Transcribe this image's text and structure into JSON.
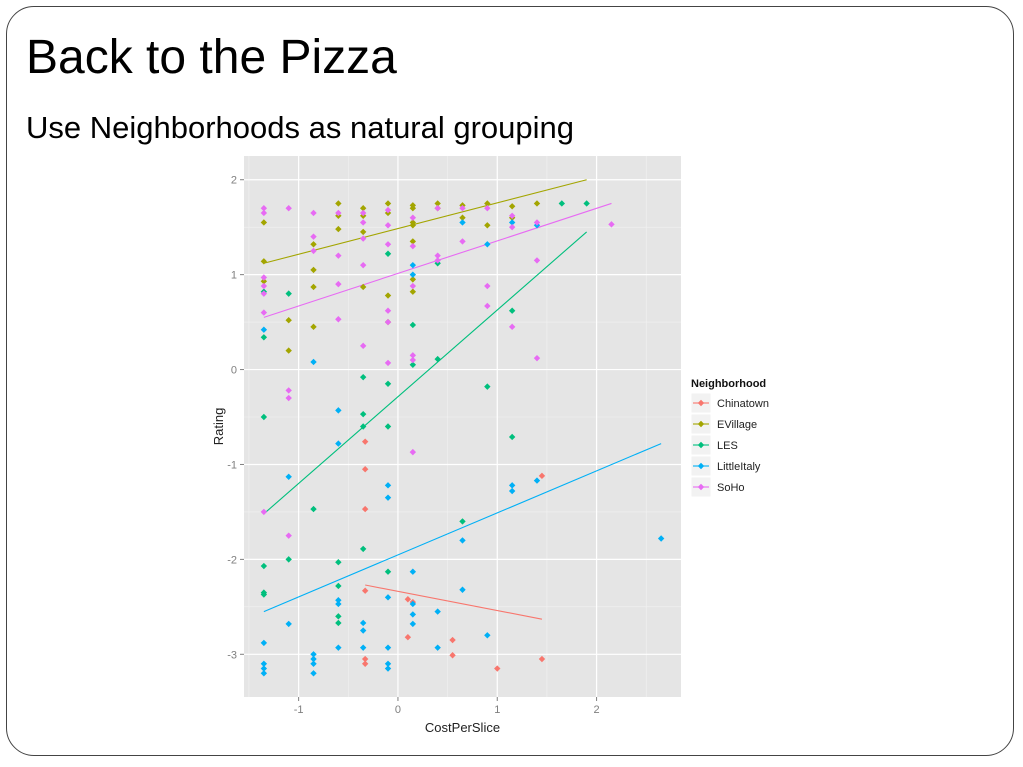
{
  "slide": {
    "title": "Back to the Pizza",
    "subtitle": "Use Neighborhoods as natural grouping"
  },
  "chart_data": {
    "type": "scatter",
    "xlabel": "CostPerSlice",
    "ylabel": "Rating",
    "xlim": [
      -1.55,
      2.85
    ],
    "ylim": [
      -3.45,
      2.25
    ],
    "xticks": [
      -1,
      0,
      1,
      2
    ],
    "yticks": [
      -3,
      -2,
      -1,
      0,
      1,
      2
    ],
    "grid": true,
    "legend": {
      "title": "Neighborhood",
      "position": "right"
    },
    "series": [
      {
        "name": "Chinatown",
        "color": "#F8766D",
        "points": [
          [
            -0.33,
            -0.76
          ],
          [
            -0.33,
            -1.05
          ],
          [
            -0.33,
            -1.47
          ],
          [
            -0.33,
            -2.33
          ],
          [
            -0.33,
            -3.05
          ],
          [
            -0.33,
            -3.1
          ],
          [
            0.1,
            -2.42
          ],
          [
            0.15,
            -2.45
          ],
          [
            0.1,
            -2.82
          ],
          [
            0.55,
            -2.85
          ],
          [
            0.55,
            -3.01
          ],
          [
            1.0,
            -3.15
          ],
          [
            1.45,
            -1.12
          ],
          [
            1.45,
            -3.05
          ]
        ],
        "trend": [
          [
            -0.33,
            -2.27
          ],
          [
            1.45,
            -2.63
          ]
        ]
      },
      {
        "name": "EVillage",
        "color": "#A3A500",
        "points": [
          [
            -1.35,
            1.55
          ],
          [
            -1.35,
            1.14
          ],
          [
            -1.35,
            0.93
          ],
          [
            -1.1,
            0.52
          ],
          [
            -1.1,
            0.2
          ],
          [
            -0.85,
            1.05
          ],
          [
            -0.85,
            0.87
          ],
          [
            -0.85,
            0.45
          ],
          [
            -0.85,
            1.32
          ],
          [
            -0.6,
            1.75
          ],
          [
            -0.6,
            1.62
          ],
          [
            -0.6,
            1.48
          ],
          [
            -0.35,
            1.7
          ],
          [
            -0.35,
            1.62
          ],
          [
            -0.35,
            1.45
          ],
          [
            -0.35,
            0.87
          ],
          [
            -0.1,
            1.75
          ],
          [
            -0.1,
            1.65
          ],
          [
            -0.1,
            0.78
          ],
          [
            -0.1,
            0.5
          ],
          [
            0.15,
            1.73
          ],
          [
            0.15,
            1.7
          ],
          [
            0.15,
            1.55
          ],
          [
            0.15,
            1.52
          ],
          [
            0.15,
            1.35
          ],
          [
            0.15,
            0.95
          ],
          [
            0.15,
            0.82
          ],
          [
            0.4,
            1.75
          ],
          [
            0.4,
            1.7
          ],
          [
            0.65,
            1.73
          ],
          [
            0.65,
            1.6
          ],
          [
            0.9,
            1.75
          ],
          [
            0.9,
            1.52
          ],
          [
            1.15,
            1.72
          ],
          [
            1.15,
            1.6
          ],
          [
            1.4,
            1.75
          ]
        ],
        "trend": [
          [
            -1.35,
            1.12
          ],
          [
            1.9,
            2.0
          ]
        ]
      },
      {
        "name": "LES",
        "color": "#00BF7D",
        "points": [
          [
            -1.35,
            0.82
          ],
          [
            -1.35,
            0.34
          ],
          [
            -1.35,
            -0.5
          ],
          [
            -1.35,
            -2.07
          ],
          [
            -1.35,
            -2.35
          ],
          [
            -1.35,
            -2.37
          ],
          [
            -1.1,
            0.8
          ],
          [
            -1.1,
            -2.0
          ],
          [
            -0.85,
            -1.47
          ],
          [
            -0.6,
            -2.03
          ],
          [
            -0.6,
            -2.28
          ],
          [
            -0.6,
            -2.6
          ],
          [
            -0.6,
            -2.67
          ],
          [
            -0.35,
            -0.08
          ],
          [
            -0.35,
            -0.47
          ],
          [
            -0.35,
            -0.6
          ],
          [
            -0.35,
            -1.89
          ],
          [
            -0.1,
            1.22
          ],
          [
            -0.1,
            -0.15
          ],
          [
            -0.1,
            -0.6
          ],
          [
            -0.1,
            -2.13
          ],
          [
            0.15,
            0.47
          ],
          [
            0.15,
            0.05
          ],
          [
            0.4,
            1.12
          ],
          [
            0.4,
            0.11
          ],
          [
            0.65,
            -1.6
          ],
          [
            0.9,
            -0.18
          ],
          [
            1.15,
            0.62
          ],
          [
            1.15,
            -0.71
          ],
          [
            1.65,
            1.75
          ],
          [
            1.9,
            1.75
          ]
        ],
        "trend": [
          [
            -1.35,
            -1.52
          ],
          [
            1.9,
            1.45
          ]
        ]
      },
      {
        "name": "LittleItaly",
        "color": "#00B0F6",
        "points": [
          [
            -1.35,
            0.42
          ],
          [
            -1.35,
            -2.88
          ],
          [
            -1.35,
            -3.1
          ],
          [
            -1.35,
            -3.15
          ],
          [
            -1.35,
            -3.2
          ],
          [
            -1.1,
            -1.13
          ],
          [
            -1.1,
            -2.68
          ],
          [
            -0.85,
            0.08
          ],
          [
            -0.85,
            -3.0
          ],
          [
            -0.85,
            -3.05
          ],
          [
            -0.85,
            -3.1
          ],
          [
            -0.85,
            -3.2
          ],
          [
            -0.6,
            -0.43
          ],
          [
            -0.6,
            -0.78
          ],
          [
            -0.6,
            -2.43
          ],
          [
            -0.6,
            -2.47
          ],
          [
            -0.6,
            -2.93
          ],
          [
            -0.35,
            -2.67
          ],
          [
            -0.35,
            -2.75
          ],
          [
            -0.35,
            -2.93
          ],
          [
            -0.1,
            -1.22
          ],
          [
            -0.1,
            -1.35
          ],
          [
            -0.1,
            -2.4
          ],
          [
            -0.1,
            -2.93
          ],
          [
            -0.1,
            -3.1
          ],
          [
            -0.1,
            -3.15
          ],
          [
            0.15,
            1.1
          ],
          [
            0.15,
            1.0
          ],
          [
            0.15,
            -2.13
          ],
          [
            0.15,
            -2.47
          ],
          [
            0.15,
            -2.58
          ],
          [
            0.15,
            -2.68
          ],
          [
            0.4,
            -2.55
          ],
          [
            0.4,
            -2.93
          ],
          [
            0.65,
            1.55
          ],
          [
            0.65,
            -1.8
          ],
          [
            0.65,
            -2.32
          ],
          [
            0.9,
            1.32
          ],
          [
            0.9,
            -2.8
          ],
          [
            1.15,
            1.55
          ],
          [
            1.15,
            -1.22
          ],
          [
            1.15,
            -1.28
          ],
          [
            1.4,
            1.52
          ],
          [
            1.4,
            -1.17
          ],
          [
            2.65,
            -1.78
          ]
        ],
        "trend": [
          [
            -1.35,
            -2.55
          ],
          [
            2.65,
            -0.78
          ]
        ]
      },
      {
        "name": "SoHo",
        "color": "#E76BF3",
        "points": [
          [
            -1.35,
            1.7
          ],
          [
            -1.35,
            1.65
          ],
          [
            -1.35,
            0.97
          ],
          [
            -1.35,
            0.88
          ],
          [
            -1.35,
            0.8
          ],
          [
            -1.35,
            0.6
          ],
          [
            -1.35,
            -1.5
          ],
          [
            -1.1,
            1.7
          ],
          [
            -1.1,
            -0.22
          ],
          [
            -1.1,
            -0.3
          ],
          [
            -1.1,
            -1.75
          ],
          [
            -0.85,
            1.65
          ],
          [
            -0.85,
            1.4
          ],
          [
            -0.85,
            1.25
          ],
          [
            -0.6,
            1.65
          ],
          [
            -0.6,
            1.2
          ],
          [
            -0.6,
            0.9
          ],
          [
            -0.6,
            0.53
          ],
          [
            -0.35,
            1.65
          ],
          [
            -0.35,
            1.55
          ],
          [
            -0.35,
            1.38
          ],
          [
            -0.35,
            1.1
          ],
          [
            -0.35,
            0.25
          ],
          [
            -0.1,
            1.68
          ],
          [
            -0.1,
            1.52
          ],
          [
            -0.1,
            1.32
          ],
          [
            -0.1,
            0.62
          ],
          [
            -0.1,
            0.5
          ],
          [
            -0.1,
            0.07
          ],
          [
            0.15,
            1.6
          ],
          [
            0.15,
            1.3
          ],
          [
            0.15,
            0.88
          ],
          [
            0.15,
            0.15
          ],
          [
            0.15,
            0.1
          ],
          [
            0.15,
            -0.87
          ],
          [
            0.4,
            1.7
          ],
          [
            0.4,
            1.2
          ],
          [
            0.4,
            1.15
          ],
          [
            0.65,
            1.7
          ],
          [
            0.65,
            1.35
          ],
          [
            0.9,
            1.7
          ],
          [
            0.9,
            0.88
          ],
          [
            0.9,
            0.67
          ],
          [
            1.15,
            1.62
          ],
          [
            1.15,
            1.5
          ],
          [
            1.15,
            0.45
          ],
          [
            1.4,
            1.55
          ],
          [
            1.4,
            1.15
          ],
          [
            1.4,
            0.12
          ],
          [
            2.15,
            1.53
          ]
        ],
        "trend": [
          [
            -1.35,
            0.55
          ],
          [
            2.15,
            1.75
          ]
        ]
      }
    ]
  }
}
